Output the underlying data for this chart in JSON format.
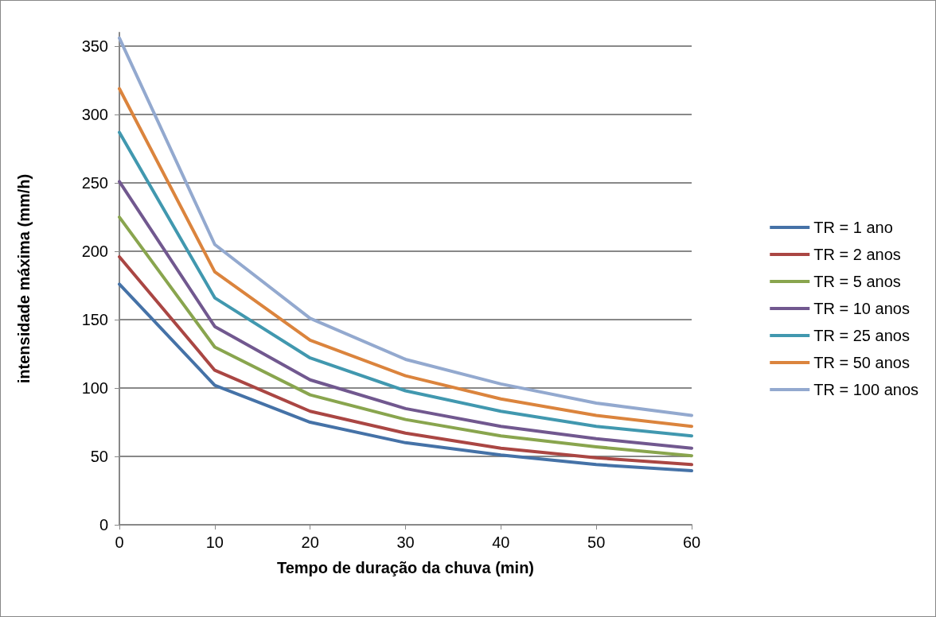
{
  "chart_data": {
    "type": "line",
    "xlabel": "Tempo de duração da chuva (min)",
    "ylabel": "intensidade máxima (mm/h)",
    "x": [
      0,
      10,
      20,
      30,
      40,
      50,
      60
    ],
    "xlim": [
      0,
      60
    ],
    "xticks": [
      0,
      10,
      20,
      30,
      40,
      50,
      60
    ],
    "ylim": [
      0,
      360
    ],
    "yticks": [
      0,
      50,
      100,
      150,
      200,
      250,
      300,
      350
    ],
    "grid": "y",
    "legend": "right",
    "marker": "none",
    "line_style": "solid",
    "series": [
      {
        "name": "TR = 1 ano",
        "color": "#4572a7",
        "values": [
          176,
          102,
          75,
          60,
          51,
          44,
          39.5
        ]
      },
      {
        "name": "TR = 2 anos",
        "color": "#aa4643",
        "values": [
          196,
          113,
          83,
          67,
          56,
          49,
          44
        ]
      },
      {
        "name": "TR = 5 anos",
        "color": "#89a54e",
        "values": [
          225,
          130,
          95,
          77,
          65,
          57,
          50.5
        ]
      },
      {
        "name": "TR = 10 anos",
        "color": "#71588f",
        "values": [
          251,
          145,
          106,
          85,
          72,
          63,
          56
        ]
      },
      {
        "name": "TR = 25 anos",
        "color": "#4198af",
        "values": [
          287,
          166,
          122,
          98,
          83,
          72,
          65
        ]
      },
      {
        "name": "TR = 50 anos",
        "color": "#db843d",
        "values": [
          319,
          185,
          135,
          109,
          92,
          80,
          72
        ]
      },
      {
        "name": "TR = 100 anos",
        "color": "#93a9cf",
        "values": [
          356,
          205,
          151,
          121,
          103,
          89,
          80
        ]
      }
    ]
  }
}
